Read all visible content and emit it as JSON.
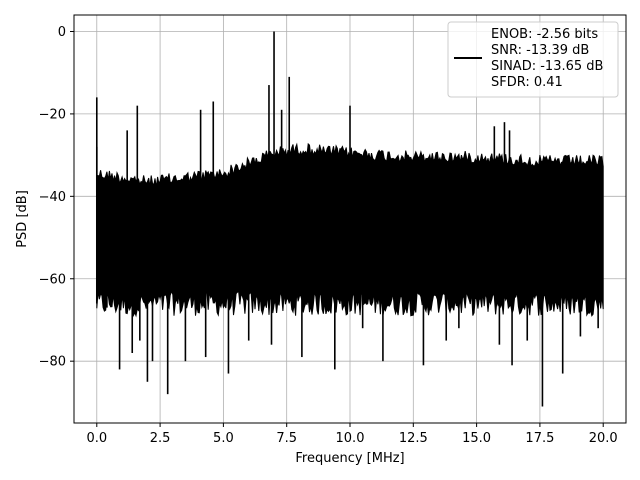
{
  "chart_data": {
    "type": "line",
    "title": "",
    "xlabel": "Frequency [MHz]",
    "ylabel": "PSD [dB]",
    "xlim": [
      -0.9,
      20.9
    ],
    "ylim": [
      -95,
      4
    ],
    "x_ticks": [
      0.0,
      2.5,
      5.0,
      7.5,
      10.0,
      12.5,
      15.0,
      17.5,
      20.0
    ],
    "x_tick_labels": [
      "0.0",
      "2.5",
      "5.0",
      "7.5",
      "10.0",
      "12.5",
      "15.0",
      "17.5",
      "20.0"
    ],
    "y_ticks": [
      0,
      -20,
      -40,
      -60,
      -80
    ],
    "y_tick_labels": [
      "0",
      "−20",
      "−40",
      "−60",
      "−80"
    ],
    "grid": true,
    "legend_position": "top-right",
    "line_color": "#000000",
    "series": [
      {
        "legend_lines": [
          "ENOB: -2.56 bits",
          "SNR: -13.39 dB",
          "SINAD: -13.65 dB",
          "SFDR: 0.41"
        ],
        "noise_band": {
          "x_start": 0.0,
          "x_end": 20.0,
          "upper_db": -34,
          "lower_db": -66
        },
        "upper_envelope": [
          [
            0.0,
            -33
          ],
          [
            2.0,
            -35
          ],
          [
            5.0,
            -33
          ],
          [
            7.0,
            -28
          ],
          [
            8.0,
            -27
          ],
          [
            10.0,
            -28
          ],
          [
            12.5,
            -29
          ],
          [
            15.0,
            -29
          ],
          [
            17.5,
            -30
          ],
          [
            20.0,
            -30
          ]
        ],
        "peaks": [
          {
            "x": 0.0,
            "y": -16
          },
          {
            "x": 1.2,
            "y": -24
          },
          {
            "x": 1.6,
            "y": -18
          },
          {
            "x": 4.1,
            "y": -19
          },
          {
            "x": 4.6,
            "y": -17
          },
          {
            "x": 6.8,
            "y": -13
          },
          {
            "x": 7.0,
            "y": 0
          },
          {
            "x": 7.3,
            "y": -19
          },
          {
            "x": 7.6,
            "y": -11
          },
          {
            "x": 10.0,
            "y": -18
          },
          {
            "x": 15.7,
            "y": -23
          },
          {
            "x": 16.1,
            "y": -22
          },
          {
            "x": 16.3,
            "y": -24
          }
        ],
        "dips": [
          {
            "x": 0.4,
            "y": -67
          },
          {
            "x": 0.9,
            "y": -82
          },
          {
            "x": 1.4,
            "y": -78
          },
          {
            "x": 1.7,
            "y": -75
          },
          {
            "x": 2.0,
            "y": -85
          },
          {
            "x": 2.2,
            "y": -80
          },
          {
            "x": 2.8,
            "y": -88
          },
          {
            "x": 3.5,
            "y": -80
          },
          {
            "x": 4.3,
            "y": -79
          },
          {
            "x": 5.2,
            "y": -83
          },
          {
            "x": 6.0,
            "y": -75
          },
          {
            "x": 6.9,
            "y": -76
          },
          {
            "x": 8.1,
            "y": -79
          },
          {
            "x": 9.4,
            "y": -82
          },
          {
            "x": 10.5,
            "y": -72
          },
          {
            "x": 11.3,
            "y": -80
          },
          {
            "x": 12.9,
            "y": -81
          },
          {
            "x": 13.8,
            "y": -75
          },
          {
            "x": 14.3,
            "y": -72
          },
          {
            "x": 15.9,
            "y": -76
          },
          {
            "x": 16.4,
            "y": -81
          },
          {
            "x": 17.0,
            "y": -75
          },
          {
            "x": 17.6,
            "y": -91
          },
          {
            "x": 18.4,
            "y": -83
          },
          {
            "x": 19.1,
            "y": -74
          },
          {
            "x": 19.8,
            "y": -72
          }
        ]
      }
    ]
  }
}
